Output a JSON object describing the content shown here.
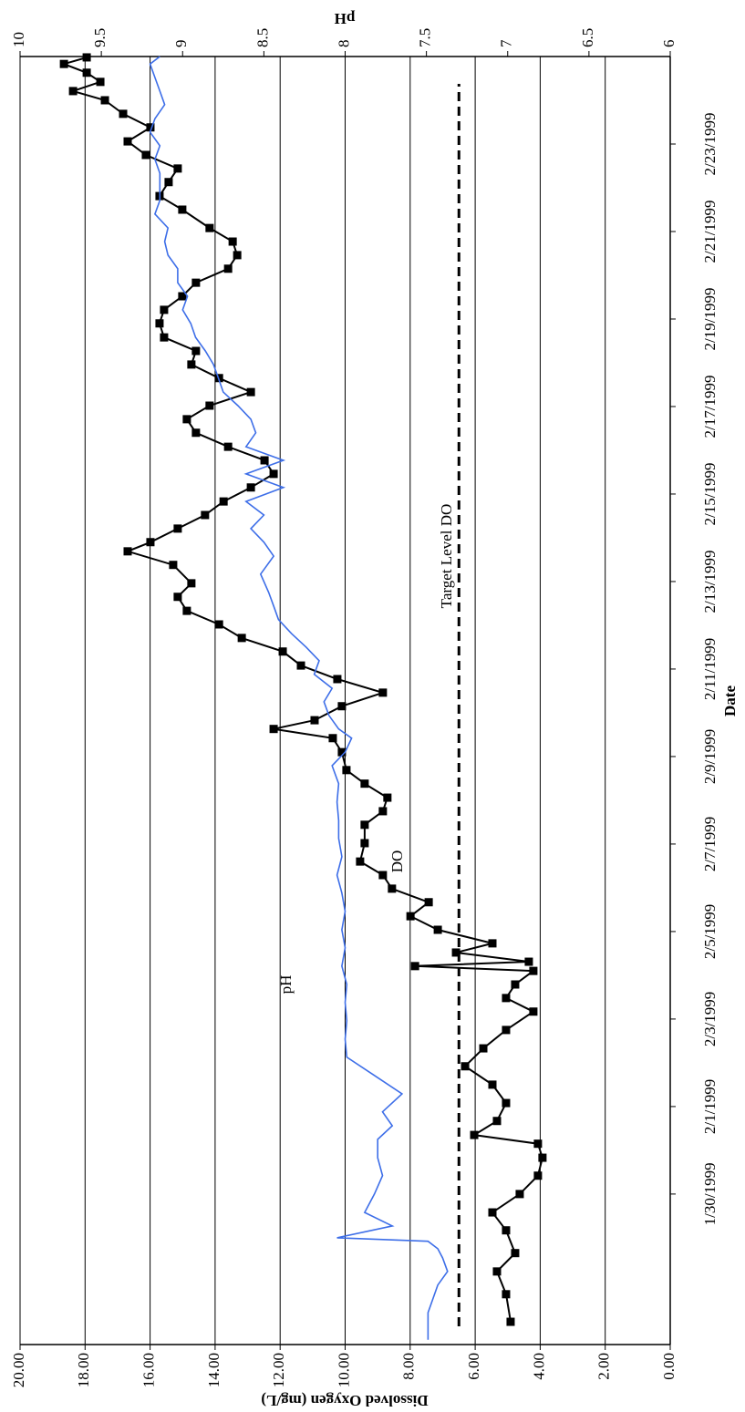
{
  "chart_data": {
    "type": "line",
    "xlabel": "Date",
    "ylabel": "Dissolved Oxygen (mg/L)",
    "y2label": "pH",
    "xlim": [
      -3.44,
      26.0
    ],
    "xticks": [
      {
        "value": 0,
        "label": "1/30/1999"
      },
      {
        "value": 2,
        "label": "2/1/1999"
      },
      {
        "value": 4,
        "label": "2/3/1999"
      },
      {
        "value": 6,
        "label": "2/5/1999"
      },
      {
        "value": 8,
        "label": "2/7/1999"
      },
      {
        "value": 10,
        "label": "2/9/1999"
      },
      {
        "value": 12,
        "label": "2/11/1999"
      },
      {
        "value": 14,
        "label": "2/13/1999"
      },
      {
        "value": 16,
        "label": "2/15/1999"
      },
      {
        "value": 18,
        "label": "2/17/1999"
      },
      {
        "value": 20,
        "label": "2/19/1999"
      },
      {
        "value": 22,
        "label": "2/21/1999"
      },
      {
        "value": 24,
        "label": "2/23/1999"
      }
    ],
    "ylim": [
      0,
      20
    ],
    "yticks": [
      {
        "value": 0,
        "label": "0.00"
      },
      {
        "value": 2,
        "label": "2.00"
      },
      {
        "value": 4,
        "label": "4.00"
      },
      {
        "value": 6,
        "label": "6.00"
      },
      {
        "value": 8,
        "label": "8.00"
      },
      {
        "value": 10,
        "label": "10.00"
      },
      {
        "value": 12,
        "label": "12.00"
      },
      {
        "value": 14,
        "label": "14.00"
      },
      {
        "value": 16,
        "label": "16.00"
      },
      {
        "value": 18,
        "label": "18.00"
      },
      {
        "value": 20,
        "label": "20.00"
      }
    ],
    "y2lim": [
      6,
      10
    ],
    "y2ticks": [
      6,
      6.5,
      7,
      7.5,
      8,
      8.5,
      9,
      9.5,
      10
    ],
    "grid": true,
    "annotations": [
      "pH",
      "DO"
    ],
    "target": {
      "value": 6.5,
      "label": "Target Level DO"
    },
    "series": [
      {
        "name": "DO",
        "color": "#000000",
        "marker": "square",
        "axis": "y",
        "x": [
          -2.92,
          -2.29,
          -1.77,
          -1.35,
          -0.83,
          -0.42,
          0,
          0.42,
          0.83,
          1.15,
          1.35,
          1.67,
          2.08,
          2.5,
          2.92,
          3.33,
          3.75,
          4.17,
          4.48,
          4.79,
          5.1,
          5.21,
          5.31,
          5.52,
          5.73,
          6.04,
          6.35,
          6.67,
          6.98,
          7.29,
          7.6,
          8.02,
          8.44,
          8.75,
          9.06,
          9.38,
          9.69,
          10.1,
          10.42,
          10.63,
          10.83,
          11.15,
          11.46,
          11.77,
          12.08,
          12.4,
          12.71,
          13.02,
          13.33,
          13.65,
          13.96,
          14.38,
          14.69,
          14.9,
          15.21,
          15.52,
          15.83,
          16.15,
          16.46,
          16.77,
          17.08,
          17.4,
          17.71,
          18.02,
          18.33,
          18.65,
          18.96,
          19.27,
          19.58,
          19.9,
          20.21,
          20.52,
          20.83,
          21.15,
          21.46,
          21.77,
          22.08,
          22.5,
          22.81,
          23.13,
          23.44,
          23.75,
          24.06,
          24.38,
          24.69,
          25.0,
          25.21,
          25.42,
          25.63,
          25.83,
          25.98
        ],
        "values": [
          4.91,
          5.05,
          5.33,
          4.77,
          5.05,
          5.47,
          4.63,
          4.07,
          3.93,
          4.07,
          6.03,
          5.33,
          5.05,
          5.47,
          6.31,
          5.75,
          5.05,
          4.21,
          5.05,
          4.77,
          4.21,
          7.85,
          4.35,
          6.59,
          5.47,
          7.15,
          7.99,
          7.43,
          8.56,
          8.84,
          9.54,
          9.4,
          9.4,
          8.84,
          8.7,
          9.4,
          9.96,
          10.1,
          10.38,
          12.2,
          10.94,
          10.1,
          8.84,
          10.24,
          11.36,
          11.92,
          13.18,
          13.88,
          14.87,
          15.15,
          14.73,
          15.29,
          16.69,
          15.99,
          15.15,
          14.31,
          13.74,
          12.9,
          12.2,
          12.48,
          13.6,
          14.59,
          14.87,
          14.17,
          12.9,
          13.88,
          14.73,
          14.59,
          15.57,
          15.71,
          15.57,
          15.01,
          14.59,
          13.6,
          13.32,
          13.46,
          14.17,
          15.01,
          15.71,
          15.43,
          15.15,
          16.13,
          16.69,
          15.99,
          16.83,
          17.39,
          18.37,
          17.53,
          17.95,
          18.65,
          17.95
        ]
      },
      {
        "name": "pH",
        "color": "#3d6ee8",
        "axis": "y2",
        "x": [
          -3.33,
          -2.71,
          -2.08,
          -1.77,
          -1.46,
          -1.25,
          -1.08,
          -1.0,
          -0.73,
          -0.42,
          0,
          0.42,
          0.83,
          1.25,
          1.56,
          1.88,
          2.29,
          2.71,
          3.13,
          3.54,
          3.96,
          4.38,
          4.79,
          5.21,
          5.63,
          6.04,
          6.46,
          6.88,
          7.29,
          7.71,
          8.13,
          8.54,
          8.96,
          9.38,
          9.79,
          10.1,
          10.42,
          10.63,
          10.94,
          11.25,
          11.56,
          11.88,
          12.19,
          12.5,
          12.81,
          13.13,
          13.44,
          13.75,
          14.17,
          14.58,
          14.9,
          15.21,
          15.52,
          15.83,
          16.15,
          16.46,
          16.77,
          17.08,
          17.4,
          17.71,
          18.02,
          18.33,
          18.65,
          18.96,
          19.27,
          19.58,
          19.9,
          20.21,
          20.52,
          20.83,
          21.15,
          21.46,
          21.77,
          22.08,
          22.4,
          22.71,
          23.02,
          23.33,
          23.65,
          23.96,
          24.27,
          24.58,
          24.9,
          25.21,
          25.52,
          25.83,
          26.0
        ],
        "values": [
          7.49,
          7.49,
          7.43,
          7.37,
          7.4,
          7.43,
          7.49,
          8.05,
          7.71,
          7.88,
          7.82,
          7.77,
          7.8,
          7.8,
          7.71,
          7.77,
          7.65,
          7.82,
          7.99,
          8.0,
          7.99,
          8.0,
          7.99,
          8.02,
          8.0,
          8.02,
          8.0,
          8.02,
          8.05,
          8.02,
          8.04,
          8.04,
          8.05,
          8.04,
          8.08,
          8.0,
          7.96,
          8.04,
          8.1,
          8.13,
          8.08,
          8.19,
          8.16,
          8.24,
          8.33,
          8.41,
          8.44,
          8.47,
          8.52,
          8.44,
          8.5,
          8.58,
          8.5,
          8.61,
          8.38,
          8.61,
          8.38,
          8.61,
          8.55,
          8.58,
          8.66,
          8.75,
          8.78,
          8.81,
          8.86,
          8.92,
          8.95,
          9.0,
          8.97,
          9.03,
          9.03,
          9.09,
          9.11,
          9.09,
          9.17,
          9.14,
          9.14,
          9.14,
          9.17,
          9.14,
          9.2,
          9.17,
          9.11,
          9.14,
          9.17,
          9.2,
          9.14
        ]
      }
    ]
  }
}
